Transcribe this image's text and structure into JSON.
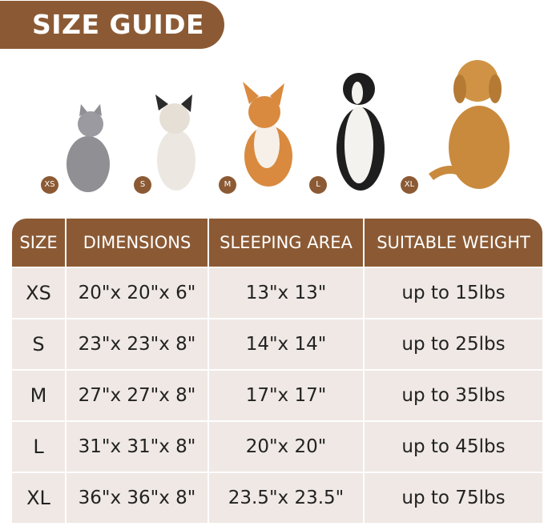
{
  "title": "SIZE GUIDE",
  "pets": [
    {
      "size": "XS",
      "animal": "cat",
      "color": "#8f8f94"
    },
    {
      "size": "S",
      "animal": "french-bulldog",
      "color": "#e9e4de"
    },
    {
      "size": "M",
      "animal": "corgi",
      "color": "#d98a3f"
    },
    {
      "size": "L",
      "animal": "border-collie",
      "color": "#1e1e1e"
    },
    {
      "size": "XL",
      "animal": "golden-retriever",
      "color": "#c98a3d"
    }
  ],
  "table": {
    "headers": [
      "SIZE",
      "DIMENSIONS",
      "SLEEPING AREA",
      "SUITABLE WEIGHT"
    ],
    "rows": [
      [
        "XS",
        "20\"x 20\"x 6\"",
        "13\"x 13\"",
        "up to 15lbs"
      ],
      [
        "S",
        "23\"x 23\"x 8\"",
        "14\"x 14\"",
        "up to 25lbs"
      ],
      [
        "M",
        "27\"x 27\"x 8\"",
        "17\"x 17\"",
        "up to 35lbs"
      ],
      [
        "L",
        "31\"x 31\"x 8\"",
        "20\"x 20\"",
        "up to 45lbs"
      ],
      [
        "XL",
        "36\"x 36\"x 8\"",
        "23.5\"x 23.5\"",
        "up to 75lbs"
      ]
    ]
  },
  "colors": {
    "brand": "#8b5a34",
    "cell": "#efe8e4"
  }
}
